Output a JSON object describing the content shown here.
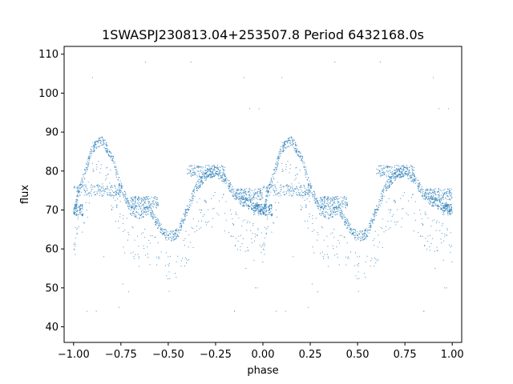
{
  "chart_data": {
    "type": "scatter",
    "title": "1SWASPJ230813.04+253507.8 Period 6432168.0s",
    "xlabel": "phase",
    "ylabel": "flux",
    "xlim": [
      -1.05,
      1.05
    ],
    "ylim": [
      36,
      112
    ],
    "xticks": [
      -1.0,
      -0.75,
      -0.5,
      -0.25,
      0.0,
      0.25,
      0.5,
      0.75,
      1.0
    ],
    "xtick_labels": [
      "−1.00",
      "−0.75",
      "−0.50",
      "−0.25",
      "0.00",
      "0.25",
      "0.50",
      "0.75",
      "1.00"
    ],
    "yticks": [
      40,
      50,
      60,
      70,
      80,
      90,
      100,
      110
    ],
    "ytick_labels": [
      "40",
      "50",
      "60",
      "70",
      "80",
      "90",
      "100",
      "110"
    ],
    "grid": false,
    "marker_color": "#1f77b4",
    "series": [
      {
        "curve": {
          "phase": [
            0.0,
            0.05,
            0.1,
            0.15,
            0.2,
            0.25,
            0.3,
            0.35,
            0.4,
            0.45,
            0.5,
            0.55,
            0.6,
            0.65,
            0.7,
            0.75,
            0.8,
            0.85,
            0.9,
            0.95,
            1.0
          ],
          "flux": [
            70,
            78,
            86,
            88,
            84,
            76,
            70,
            69,
            70,
            66,
            63,
            64,
            70,
            76,
            79,
            80,
            78,
            74,
            72,
            71,
            70
          ]
        },
        "bands": [
          {
            "phase": [
              0.0,
              0.25
            ],
            "flux": 75
          },
          {
            "phase": [
              -0.05,
              0.05
            ],
            "flux": 70
          },
          {
            "phase": [
              0.3,
              0.45
            ],
            "flux": 72
          },
          {
            "phase": [
              0.6,
              0.8
            ],
            "flux": 80
          },
          {
            "phase": [
              0.85,
              1.0
            ],
            "flux": 74
          }
        ],
        "outliers": [
          [
            0.12,
            44
          ],
          [
            0.07,
            44
          ],
          [
            0.24,
            45
          ],
          [
            0.26,
            51
          ],
          [
            -0.09,
            55
          ],
          [
            -0.03,
            50
          ],
          [
            0.38,
            108
          ],
          [
            0.62,
            108
          ],
          [
            0.16,
            58
          ],
          [
            0.27,
            59
          ],
          [
            0.45,
            58
          ],
          [
            0.5,
            56
          ],
          [
            0.85,
            44
          ],
          [
            -0.15,
            44
          ],
          [
            0.29,
            49
          ],
          [
            -0.02,
            96
          ],
          [
            0.1,
            104
          ],
          [
            -0.1,
            104
          ],
          [
            0.93,
            96
          ],
          [
            0.96,
            50
          ]
        ]
      }
    ]
  }
}
